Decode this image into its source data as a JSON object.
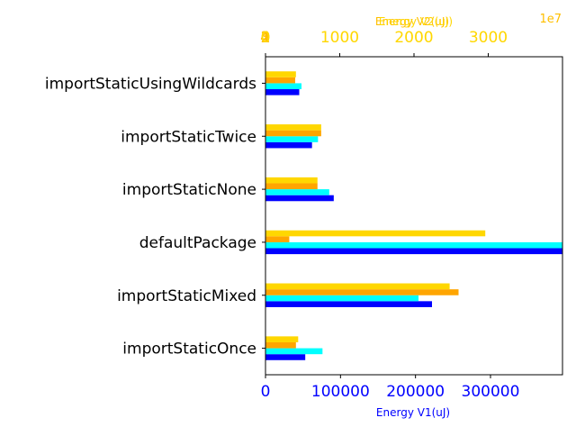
{
  "chart_data": {
    "type": "bar",
    "orientation": "horizontal",
    "categories": [
      "importStaticOnce",
      "importStaticMixed",
      "defaultPackage",
      "importStaticNone",
      "importStaticTwice",
      "importStaticUsingWildcards"
    ],
    "axes": {
      "bottom": {
        "label": "Energy V1(uJ)",
        "color": "#0000ff",
        "ticks": [
          0,
          100000,
          200000,
          300000
        ],
        "tick_labels": [
          "0",
          "100000",
          "200000",
          "300000"
        ],
        "range": [
          0,
          396000
        ]
      },
      "top_1": {
        "label": "Energy V2(uJ)",
        "color": "#ffd700",
        "ticks": [
          0,
          1000,
          2000,
          3000
        ],
        "tick_labels": [
          "0",
          "1000",
          "2000",
          "3000"
        ],
        "range": [
          0,
          4000
        ]
      },
      "top_2": {
        "label": "Energy V2(uJ)",
        "color": "#ffbf00",
        "ticks": [
          0,
          1,
          2,
          3,
          4
        ],
        "tick_labels": [
          "0",
          "1",
          "2",
          "3",
          "4"
        ],
        "multiplier_label": "1e7",
        "range": [
          0,
          40000000
        ]
      }
    },
    "series": [
      {
        "axis": "bottom",
        "color": "#0000ff",
        "values": [
          53000,
          222000,
          396000,
          91000,
          62000,
          45000
        ]
      },
      {
        "axis": "bottom",
        "color": "#00ffff",
        "values": [
          76000,
          204000,
          396000,
          85000,
          70000,
          48000
        ]
      },
      {
        "axis": "top_2",
        "color": "#ffa500",
        "values": [
          4100000,
          26000000,
          3200000,
          7000000,
          7500000,
          4000000
        ]
      },
      {
        "axis": "top_1",
        "color": "#ffd700",
        "values": [
          440,
          2480,
          2960,
          700,
          750,
          410
        ]
      }
    ],
    "grid": false,
    "legend": "none"
  }
}
